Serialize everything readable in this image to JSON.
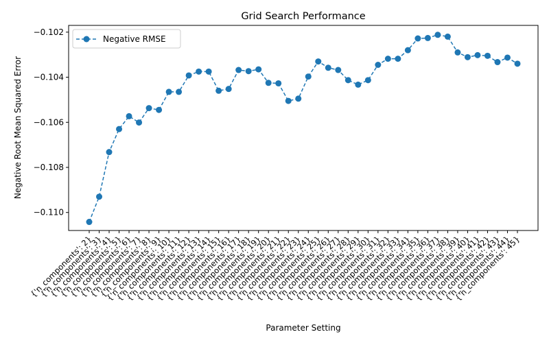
{
  "chart_data": {
    "type": "line",
    "title": "Grid Search Performance",
    "xlabel": "Parameter Setting",
    "ylabel": "Negative Root Mean Squared Error",
    "ylim": [
      -0.1108,
      -0.1017
    ],
    "yticks": [
      -0.11,
      -0.108,
      -0.106,
      -0.104,
      -0.102
    ],
    "ytick_labels": [
      "−0.110",
      "−0.108",
      "−0.106",
      "−0.104",
      "−0.102"
    ],
    "grid": false,
    "legend": "upper-left",
    "categories": [
      "{'n_components': 2}",
      "{'n_components': 3}",
      "{'n_components': 4}",
      "{'n_components': 5}",
      "{'n_components': 6}",
      "{'n_components': 7}",
      "{'n_components': 8}",
      "{'n_components': 9}",
      "{'n_components': 10}",
      "{'n_components': 11}",
      "{'n_components': 12}",
      "{'n_components': 13}",
      "{'n_components': 14}",
      "{'n_components': 15}",
      "{'n_components': 16}",
      "{'n_components': 17}",
      "{'n_components': 18}",
      "{'n_components': 19}",
      "{'n_components': 20}",
      "{'n_components': 21}",
      "{'n_components': 22}",
      "{'n_components': 23}",
      "{'n_components': 24}",
      "{'n_components': 25}",
      "{'n_components': 26}",
      "{'n_components': 27}",
      "{'n_components': 28}",
      "{'n_components': 29}",
      "{'n_components': 30}",
      "{'n_components': 31}",
      "{'n_components': 32}",
      "{'n_components': 33}",
      "{'n_components': 34}",
      "{'n_components': 35}",
      "{'n_components': 36}",
      "{'n_components': 37}",
      "{'n_components': 38}",
      "{'n_components': 39}",
      "{'n_components': 40}",
      "{'n_components': 41}",
      "{'n_components': 42}",
      "{'n_components': 43}",
      "{'n_components': 44}",
      "{'n_components': 45}"
    ],
    "series": [
      {
        "name": "Negative RMSE",
        "color": "#1f77b4",
        "values": [
          -0.11042,
          -0.1093,
          -0.10732,
          -0.1063,
          -0.10573,
          -0.10601,
          -0.10537,
          -0.10545,
          -0.10465,
          -0.10465,
          -0.10392,
          -0.10375,
          -0.10375,
          -0.1046,
          -0.10452,
          -0.10368,
          -0.10373,
          -0.10365,
          -0.10425,
          -0.10427,
          -0.10505,
          -0.10495,
          -0.10397,
          -0.1033,
          -0.10358,
          -0.10368,
          -0.10413,
          -0.10433,
          -0.10413,
          -0.10345,
          -0.10318,
          -0.10318,
          -0.1028,
          -0.10228,
          -0.10226,
          -0.10212,
          -0.1022,
          -0.1029,
          -0.10311,
          -0.10302,
          -0.10305,
          -0.10333,
          -0.10313,
          -0.1034
        ]
      }
    ]
  }
}
